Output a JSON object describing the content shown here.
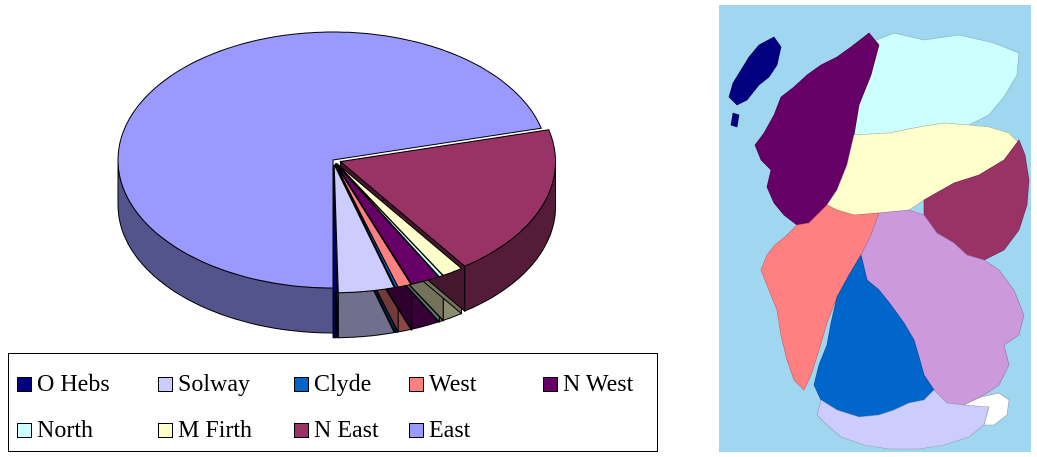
{
  "chart_data": {
    "type": "pie",
    "style": "3d-exploded",
    "title": "",
    "legend_position": "bottom",
    "series": [
      {
        "name": "O Hebs",
        "value": 0.3,
        "color": "#000080"
      },
      {
        "name": "Solway",
        "value": 4.2,
        "color": "#ccccff"
      },
      {
        "name": "Clyde",
        "value": 0.2,
        "color": "#0066cc"
      },
      {
        "name": "West",
        "value": 1.0,
        "color": "#ff8080"
      },
      {
        "name": "N West",
        "value": 2.2,
        "color": "#660066"
      },
      {
        "name": "North",
        "value": 0.3,
        "color": "#ccffff"
      },
      {
        "name": "M Firth",
        "value": 1.6,
        "color": "#ffffcc"
      },
      {
        "name": "N East",
        "value": 19.2,
        "color": "#993366"
      },
      {
        "name": "East",
        "value": 71.0,
        "color": "#9999ff"
      }
    ]
  },
  "legend": {
    "rows": [
      [
        "O Hebs",
        "Solway",
        "Clyde",
        "West",
        "N West"
      ],
      [
        "North",
        "M Firth",
        "N East",
        "East"
      ]
    ]
  },
  "map": {
    "sea_color": "#9fd6f0",
    "regions": [
      {
        "name": "O Hebs",
        "color": "#000080"
      },
      {
        "name": "North",
        "color": "#ccffff"
      },
      {
        "name": "N West",
        "color": "#660066"
      },
      {
        "name": "M Firth",
        "color": "#ffffcc"
      },
      {
        "name": "N East",
        "color": "#993366"
      },
      {
        "name": "West",
        "color": "#ff8080"
      },
      {
        "name": "East",
        "color": "#cc99dd"
      },
      {
        "name": "Clyde",
        "color": "#0066cc"
      },
      {
        "name": "Solway",
        "color": "#ccccff"
      }
    ]
  }
}
